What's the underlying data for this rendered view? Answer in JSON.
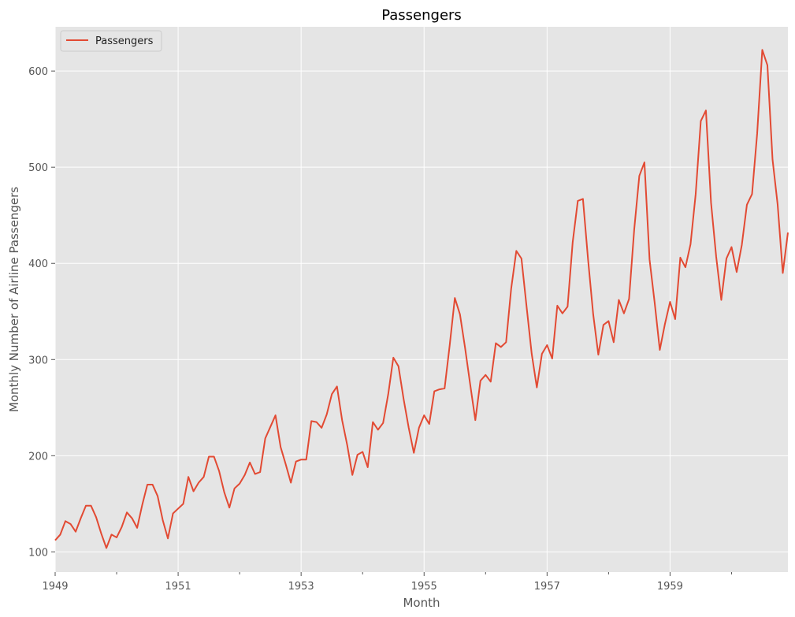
{
  "chart_data": {
    "type": "line",
    "title": "Passengers",
    "xlabel": "Month",
    "ylabel": "Monthly Number of Airline Passengers",
    "x_start": "1949-01",
    "x_end": "1960-12",
    "xlim": [
      "1949-01",
      "1960-12"
    ],
    "ylim": [
      79,
      646
    ],
    "x_tick_labels": [
      {
        "date": "1949-01",
        "label": "1949"
      },
      {
        "date": "1951-01",
        "label": "1951"
      },
      {
        "date": "1953-01",
        "label": "1953"
      },
      {
        "date": "1955-01",
        "label": "1955"
      },
      {
        "date": "1957-01",
        "label": "1957"
      },
      {
        "date": "1959-01",
        "label": "1959"
      }
    ],
    "x_minor_ticks": [
      "1950-01",
      "1952-01",
      "1954-01",
      "1956-01",
      "1958-01",
      "1960-01"
    ],
    "y_ticks": [
      100,
      200,
      300,
      400,
      500,
      600
    ],
    "grid": true,
    "legend": {
      "position": "top-left",
      "entries": [
        "Passengers"
      ]
    },
    "series": [
      {
        "name": "Passengers",
        "color": "#e24a33",
        "values": [
          112,
          118,
          132,
          129,
          121,
          135,
          148,
          148,
          136,
          119,
          104,
          118,
          115,
          126,
          141,
          135,
          125,
          149,
          170,
          170,
          158,
          133,
          114,
          140,
          145,
          150,
          178,
          163,
          172,
          178,
          199,
          199,
          184,
          162,
          146,
          166,
          171,
          180,
          193,
          181,
          183,
          218,
          230,
          242,
          209,
          191,
          172,
          194,
          196,
          196,
          236,
          235,
          229,
          243,
          264,
          272,
          237,
          211,
          180,
          201,
          204,
          188,
          235,
          227,
          234,
          264,
          302,
          293,
          259,
          229,
          203,
          229,
          242,
          233,
          267,
          269,
          270,
          315,
          364,
          347,
          312,
          274,
          237,
          278,
          284,
          277,
          317,
          313,
          318,
          374,
          413,
          405,
          355,
          306,
          271,
          306,
          315,
          301,
          356,
          348,
          355,
          422,
          465,
          467,
          404,
          347,
          305,
          336,
          340,
          318,
          362,
          348,
          363,
          435,
          491,
          505,
          404,
          359,
          310,
          337,
          360,
          342,
          406,
          396,
          420,
          472,
          548,
          559,
          463,
          407,
          362,
          405,
          417,
          391,
          419,
          461,
          472,
          535,
          622,
          606,
          508,
          461,
          390,
          432
        ]
      }
    ]
  }
}
